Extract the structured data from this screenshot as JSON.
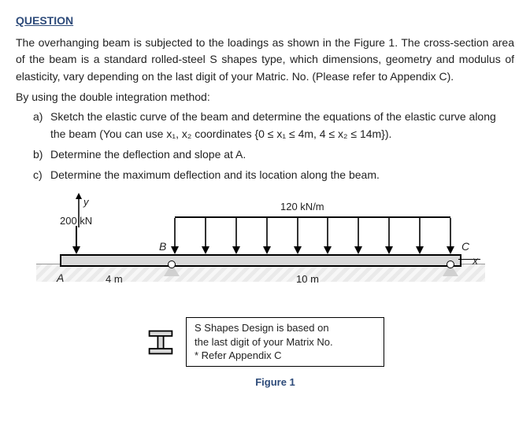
{
  "heading": "QUESTION",
  "para1": "The overhanging beam is subjected to the loadings as shown in the Figure 1. The cross-section area of the beam is a standard rolled-steel S shapes type, which dimensions, geometry and modulus of elasticity, vary depending on the last digit of your Matric. No. (Please refer to Appendix C).",
  "para2": "By using the double integration method:",
  "items": {
    "a": "Sketch the elastic curve of the beam and determine the equations of the elastic curve along the beam (You can use x₁, x₂ coordinates {0 ≤ x₁ ≤ 4m, 4 ≤ x₂ ≤ 14m}).",
    "b": "Determine the deflection and slope at A.",
    "c": "Determine the maximum deflection and its location along the beam."
  },
  "figure": {
    "point_load": "200 kN",
    "dist_load": "120 kN/m",
    "span1": "4 m",
    "span2": "10 m",
    "labels": {
      "A": "A",
      "B": "B",
      "C": "C",
      "x": "x",
      "y": "y"
    },
    "num_dist_arrows": 10,
    "colors": {
      "beam_fill": "#d9d9d9",
      "ground_a": "#eaeaea",
      "ground_b": "#f7f7f7",
      "accent": "#2e4b7a",
      "line": "#000000"
    }
  },
  "note": {
    "l1": "S Shapes Design is based on",
    "l2": "the last digit of your Matrix No.",
    "l3": "* Refer Appendix C"
  },
  "caption": "Figure 1"
}
